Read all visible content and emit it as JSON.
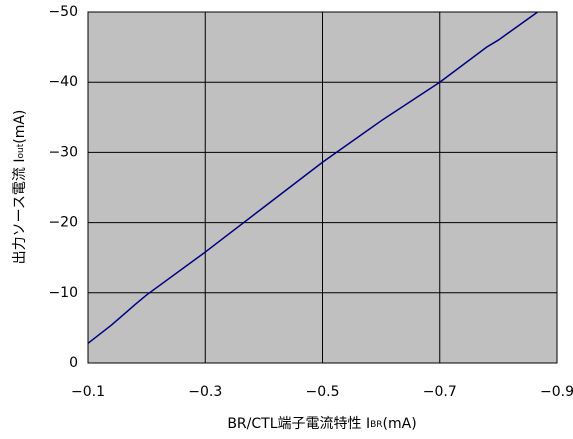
{
  "chart_data": {
    "type": "line",
    "xlabel": "BR/CTL端子電流特性 I",
    "xlabel_sub": "BR",
    "xlabel_unit": "(mA)",
    "ylabel": "出力ソース電流 I",
    "ylabel_sub": "out",
    "ylabel_unit": "(mA)",
    "x": [
      -0.1,
      -0.14,
      -0.18,
      -0.2,
      -0.3,
      -0.4,
      -0.5,
      -0.6,
      -0.7,
      -0.78,
      -0.8,
      -0.867
    ],
    "series": [
      {
        "color": "#000080",
        "values": [
          -2.8,
          -5.4,
          -8.3,
          -9.7,
          -15.8,
          -22.2,
          -28.6,
          -34.5,
          -40.0,
          -45.0,
          -46.0,
          -50.0
        ]
      }
    ],
    "xlim": [
      -0.1,
      -0.9
    ],
    "xticks": [
      {
        "value": -0.1,
        "label": "−0.1"
      },
      {
        "value": -0.3,
        "label": "−0.3"
      },
      {
        "value": -0.5,
        "label": "−0.5"
      },
      {
        "value": -0.7,
        "label": "−0.7"
      },
      {
        "value": -0.9,
        "label": "−0.9"
      }
    ],
    "ylim": [
      0,
      -50
    ],
    "yticks": [
      0,
      {
        "value": -10,
        "label": "−10"
      },
      {
        "value": -20,
        "label": "−20"
      },
      {
        "value": -30,
        "label": "−30"
      },
      {
        "value": -40,
        "label": "−40"
      },
      {
        "value": -50,
        "label": "−50"
      }
    ],
    "grid": true,
    "background": "#c0c0c0"
  }
}
